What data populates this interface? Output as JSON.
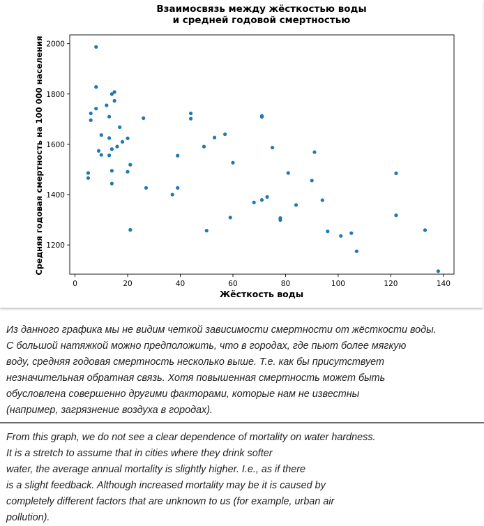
{
  "chart_data": {
    "type": "scatter",
    "title": [
      "Взаимосвязь между жёсткостью воды",
      "и средней годовой смертностью"
    ],
    "xlabel": "Жёсткость воды",
    "ylabel": "Средняя годовая смертность на 100 000 населения",
    "xlim": [
      -2,
      144
    ],
    "ylim": [
      1084,
      2035
    ],
    "xticks": [
      "0",
      "20",
      "40",
      "60",
      "80",
      "100",
      "120",
      "140"
    ],
    "yticks": [
      "1200",
      "1400",
      "1600",
      "1800",
      "2000"
    ],
    "xtick_values": [
      0,
      20,
      40,
      60,
      80,
      100,
      120,
      140
    ],
    "ytick_values": [
      1200,
      1400,
      1600,
      1800,
      2000
    ],
    "grid": false,
    "marker_color": "#1f77b4",
    "points": [
      [
        8,
        1987
      ],
      [
        8,
        1828
      ],
      [
        14,
        1800
      ],
      [
        15,
        1808
      ],
      [
        15,
        1773
      ],
      [
        12,
        1755
      ],
      [
        8,
        1742
      ],
      [
        6,
        1723
      ],
      [
        13,
        1710
      ],
      [
        6,
        1696
      ],
      [
        17,
        1668
      ],
      [
        10,
        1637
      ],
      [
        13,
        1625
      ],
      [
        20,
        1624
      ],
      [
        18,
        1610
      ],
      [
        16,
        1591
      ],
      [
        14,
        1581
      ],
      [
        9,
        1574
      ],
      [
        10,
        1558
      ],
      [
        13,
        1556
      ],
      [
        21,
        1519
      ],
      [
        14,
        1495
      ],
      [
        20,
        1491
      ],
      [
        5,
        1486
      ],
      [
        5,
        1466
      ],
      [
        14,
        1444
      ],
      [
        21,
        1260
      ],
      [
        26,
        1704
      ],
      [
        27,
        1427
      ],
      [
        44,
        1723
      ],
      [
        44,
        1702
      ],
      [
        39,
        1555
      ],
      [
        39,
        1427
      ],
      [
        37,
        1400
      ],
      [
        49,
        1591
      ],
      [
        53,
        1627
      ],
      [
        57,
        1640
      ],
      [
        60,
        1527
      ],
      [
        50,
        1257
      ],
      [
        59,
        1309
      ],
      [
        71,
        1713
      ],
      [
        71,
        1709
      ],
      [
        75,
        1587
      ],
      [
        81,
        1486
      ],
      [
        91,
        1569
      ],
      [
        90,
        1456
      ],
      [
        94,
        1378
      ],
      [
        68,
        1369
      ],
      [
        71,
        1379
      ],
      [
        73,
        1391
      ],
      [
        78,
        1307
      ],
      [
        78,
        1299
      ],
      [
        84,
        1359
      ],
      [
        96,
        1254
      ],
      [
        101,
        1236
      ],
      [
        105,
        1247
      ],
      [
        107,
        1175
      ],
      [
        122,
        1485
      ],
      [
        122,
        1318
      ],
      [
        133,
        1259
      ],
      [
        138,
        1096
      ]
    ]
  },
  "notes": {
    "ru_lines": [
      "Из данного графика мы не видим четкой зависимости смертности от жёсткости воды.",
      "С большой натяжкой можно предположить, что в городах, где пьют более мягкую",
      "воду, средняя годовая смертность несколько выше. Т.е. как бы присутствует",
      "незначительная обратная связь. Хотя повышенная смертность может быть",
      "обусловлена совершенно другими факторами, которые нам не известны",
      "(например, загрязнение воздуха в городах)."
    ],
    "en_lines": [
      "From this graph, we do not see a clear dependence of mortality on water hardness.",
      "It is a stretch to assume that in cities where they drink softer",
      "water, the average annual mortality is slightly higher. I.e., as if there",
      "is a slight feedback. Although increased mortality may be it is caused by",
      "completely different factors that are unknown to us (for example, urban air",
      "pollution)."
    ]
  }
}
